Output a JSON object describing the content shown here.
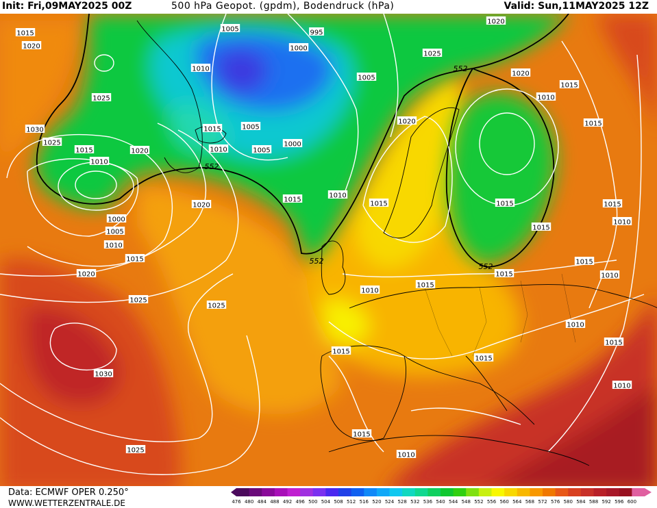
{
  "header": {
    "init": "Init: Fri,09MAY2025 00Z",
    "title": "500 hPa Geopot. (gpdm), Bodendruck (hPa)",
    "valid": "Valid: Sun,11MAY2025 12Z"
  },
  "footer": {
    "data_source": "Data: ECMWF OPER 0.250°",
    "website": "WWW.WETTERZENTRALE.DE"
  },
  "colorbar": {
    "values": [
      "476",
      "480",
      "484",
      "488",
      "492",
      "496",
      "500",
      "504",
      "508",
      "512",
      "516",
      "520",
      "524",
      "528",
      "532",
      "536",
      "540",
      "544",
      "548",
      "552",
      "556",
      "560",
      "564",
      "568",
      "572",
      "576",
      "580",
      "584",
      "588",
      "592",
      "596",
      "600"
    ],
    "colors": [
      "#4b0a5c",
      "#6a0a7a",
      "#8a0a9a",
      "#a810b8",
      "#c020d0",
      "#a030e0",
      "#7a30f0",
      "#4a28f0",
      "#2040e8",
      "#1060f0",
      "#1088f8",
      "#10a8f8",
      "#10c8f0",
      "#10d8c0",
      "#10d890",
      "#10d060",
      "#10c830",
      "#30d010",
      "#80e010",
      "#c8f010",
      "#f8f800",
      "#f8d800",
      "#f8b800",
      "#f89800",
      "#f07800",
      "#e85818",
      "#d84020",
      "#c83028",
      "#b82028",
      "#a81828",
      "#981020",
      "#e060a0"
    ],
    "arrow_left_color": "#4b0a5c",
    "arrow_right_color": "#e060a0"
  },
  "map": {
    "contour_552_label": "552",
    "pressure_labels": [
      {
        "text": "1015"
      },
      {
        "text": "1020"
      },
      {
        "text": "1005"
      },
      {
        "text": "995"
      },
      {
        "text": "1020"
      },
      {
        "text": "1010"
      },
      {
        "text": "1000"
      },
      {
        "text": "1025"
      },
      {
        "text": "1005"
      },
      {
        "text": "1025"
      },
      {
        "text": "1020"
      },
      {
        "text": "1010"
      },
      {
        "text": "1015"
      },
      {
        "text": "1005"
      },
      {
        "text": "1030"
      },
      {
        "text": "1025"
      },
      {
        "text": "1015"
      },
      {
        "text": "1020"
      },
      {
        "text": "1010"
      },
      {
        "text": "1005"
      },
      {
        "text": "1000"
      },
      {
        "text": "1010"
      },
      {
        "text": "1015"
      },
      {
        "text": "1020"
      },
      {
        "text": "1015"
      },
      {
        "text": "1010"
      },
      {
        "text": "1020"
      },
      {
        "text": "1015"
      },
      {
        "text": "1015"
      },
      {
        "text": "1000"
      },
      {
        "text": "1005"
      },
      {
        "text": "1010"
      },
      {
        "text": "1015"
      },
      {
        "text": "1020"
      },
      {
        "text": "1025"
      },
      {
        "text": "1025"
      },
      {
        "text": "1030"
      },
      {
        "text": "1010"
      },
      {
        "text": "1015"
      },
      {
        "text": "1015"
      },
      {
        "text": "1015"
      },
      {
        "text": "1015"
      },
      {
        "text": "1010"
      },
      {
        "text": "1015"
      },
      {
        "text": "1010"
      },
      {
        "text": "1010"
      },
      {
        "text": "1015"
      },
      {
        "text": "1015"
      },
      {
        "text": "1010"
      },
      {
        "text": "1025"
      },
      {
        "text": "1015"
      },
      {
        "text": "1015"
      },
      {
        "text": "1015"
      },
      {
        "text": "1010"
      }
    ],
    "height_labels": [
      {
        "text": "552"
      },
      {
        "text": "552"
      },
      {
        "text": "552"
      },
      {
        "text": "552"
      }
    ]
  }
}
